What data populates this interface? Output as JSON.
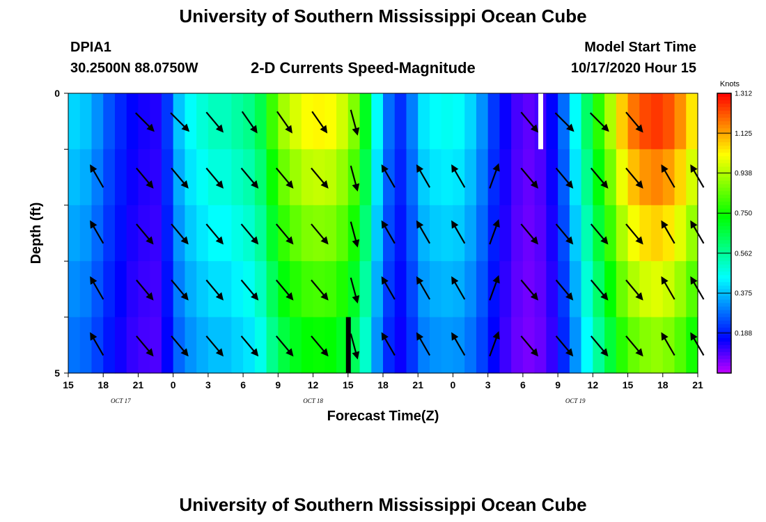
{
  "header": {
    "top_title": "University of Southern Mississippi Ocean Cube",
    "bottom_title": "University of Southern Mississippi Ocean Cube",
    "station_id": "DPIA1",
    "station_coords": "30.2500N 88.0750W",
    "plot_title": "2-D Currents Speed-Magnitude",
    "model_start_label": "Model Start Time",
    "model_start_value": "10/17/2020 Hour 15"
  },
  "chart_data": {
    "type": "heatmap",
    "title": "2-D Currents Speed-Magnitude",
    "xlabel": "Forecast Time(Z)",
    "ylabel": "Depth (ft)",
    "x_tick_labels": [
      "15",
      "18",
      "21",
      "0",
      "3",
      "6",
      "9",
      "12",
      "15",
      "18",
      "21",
      "0",
      "3",
      "6",
      "9",
      "12",
      "15",
      "18",
      "21"
    ],
    "date_labels": [
      {
        "label": "OCT 17",
        "hour_index": 4.5
      },
      {
        "label": "OCT 18",
        "hour_index": 21
      },
      {
        "label": "OCT 19",
        "hour_index": 43.5
      }
    ],
    "y_tick_labels": [
      "0",
      "5"
    ],
    "ylim": [
      0,
      5
    ],
    "hours": 54,
    "depth_levels": 5,
    "colorbar": {
      "unit": "Knots",
      "min": 0.0,
      "max": 1.312,
      "tick_labels": [
        "1.312",
        "1.125",
        "0.938",
        "0.750",
        "0.562",
        "0.375",
        "0.188"
      ],
      "tick_values": [
        1.312,
        1.125,
        0.938,
        0.75,
        0.562,
        0.375,
        0.188
      ]
    },
    "surface_speed_knots_hourly": [
      0.4,
      0.38,
      0.32,
      0.25,
      0.2,
      0.16,
      0.14,
      0.13,
      0.22,
      0.38,
      0.45,
      0.49,
      0.52,
      0.52,
      0.55,
      0.58,
      0.65,
      0.8,
      0.92,
      0.98,
      1.02,
      1.03,
      1.02,
      0.97,
      0.88,
      0.7,
      0.45,
      0.28,
      0.21,
      0.3,
      0.42,
      0.45,
      0.46,
      0.45,
      0.4,
      0.32,
      0.22,
      0.15,
      0.1,
      0.08,
      0.1,
      0.16,
      0.28,
      0.45,
      0.62,
      0.78,
      0.93,
      1.08,
      1.18,
      1.23,
      1.25,
      1.22,
      1.15,
      1.05
    ],
    "depth_factor": [
      1.0,
      0.93,
      0.86,
      0.79,
      0.72
    ],
    "markers": [
      {
        "hour_index": 24,
        "depth_level": 4,
        "color": "#000000"
      },
      {
        "hour_index": 40.5,
        "depth_level": 0,
        "color": "#ffffff"
      }
    ],
    "vectors": {
      "hour_indices": [
        2.5,
        6.5,
        9.5,
        12.5,
        15.5,
        18.5,
        21.5,
        24.5,
        27.5,
        30.5,
        33.5,
        36.5,
        39.5,
        42.5,
        45.5,
        48.5,
        51.5,
        54
      ],
      "surface_directions_deg": [
        150,
        135,
        135,
        140,
        145,
        145,
        145,
        165,
        330,
        330,
        340,
        15,
        140,
        135,
        135,
        140,
        145,
        145
      ],
      "surface_row_present": [
        false,
        true,
        true,
        true,
        true,
        true,
        true,
        true,
        false,
        false,
        false,
        false,
        true,
        true,
        true,
        true,
        false,
        false
      ],
      "lower_directions_deg": [
        330,
        140,
        140,
        140,
        140,
        140,
        140,
        165,
        330,
        330,
        330,
        20,
        140,
        140,
        140,
        140,
        330,
        330
      ]
    }
  }
}
